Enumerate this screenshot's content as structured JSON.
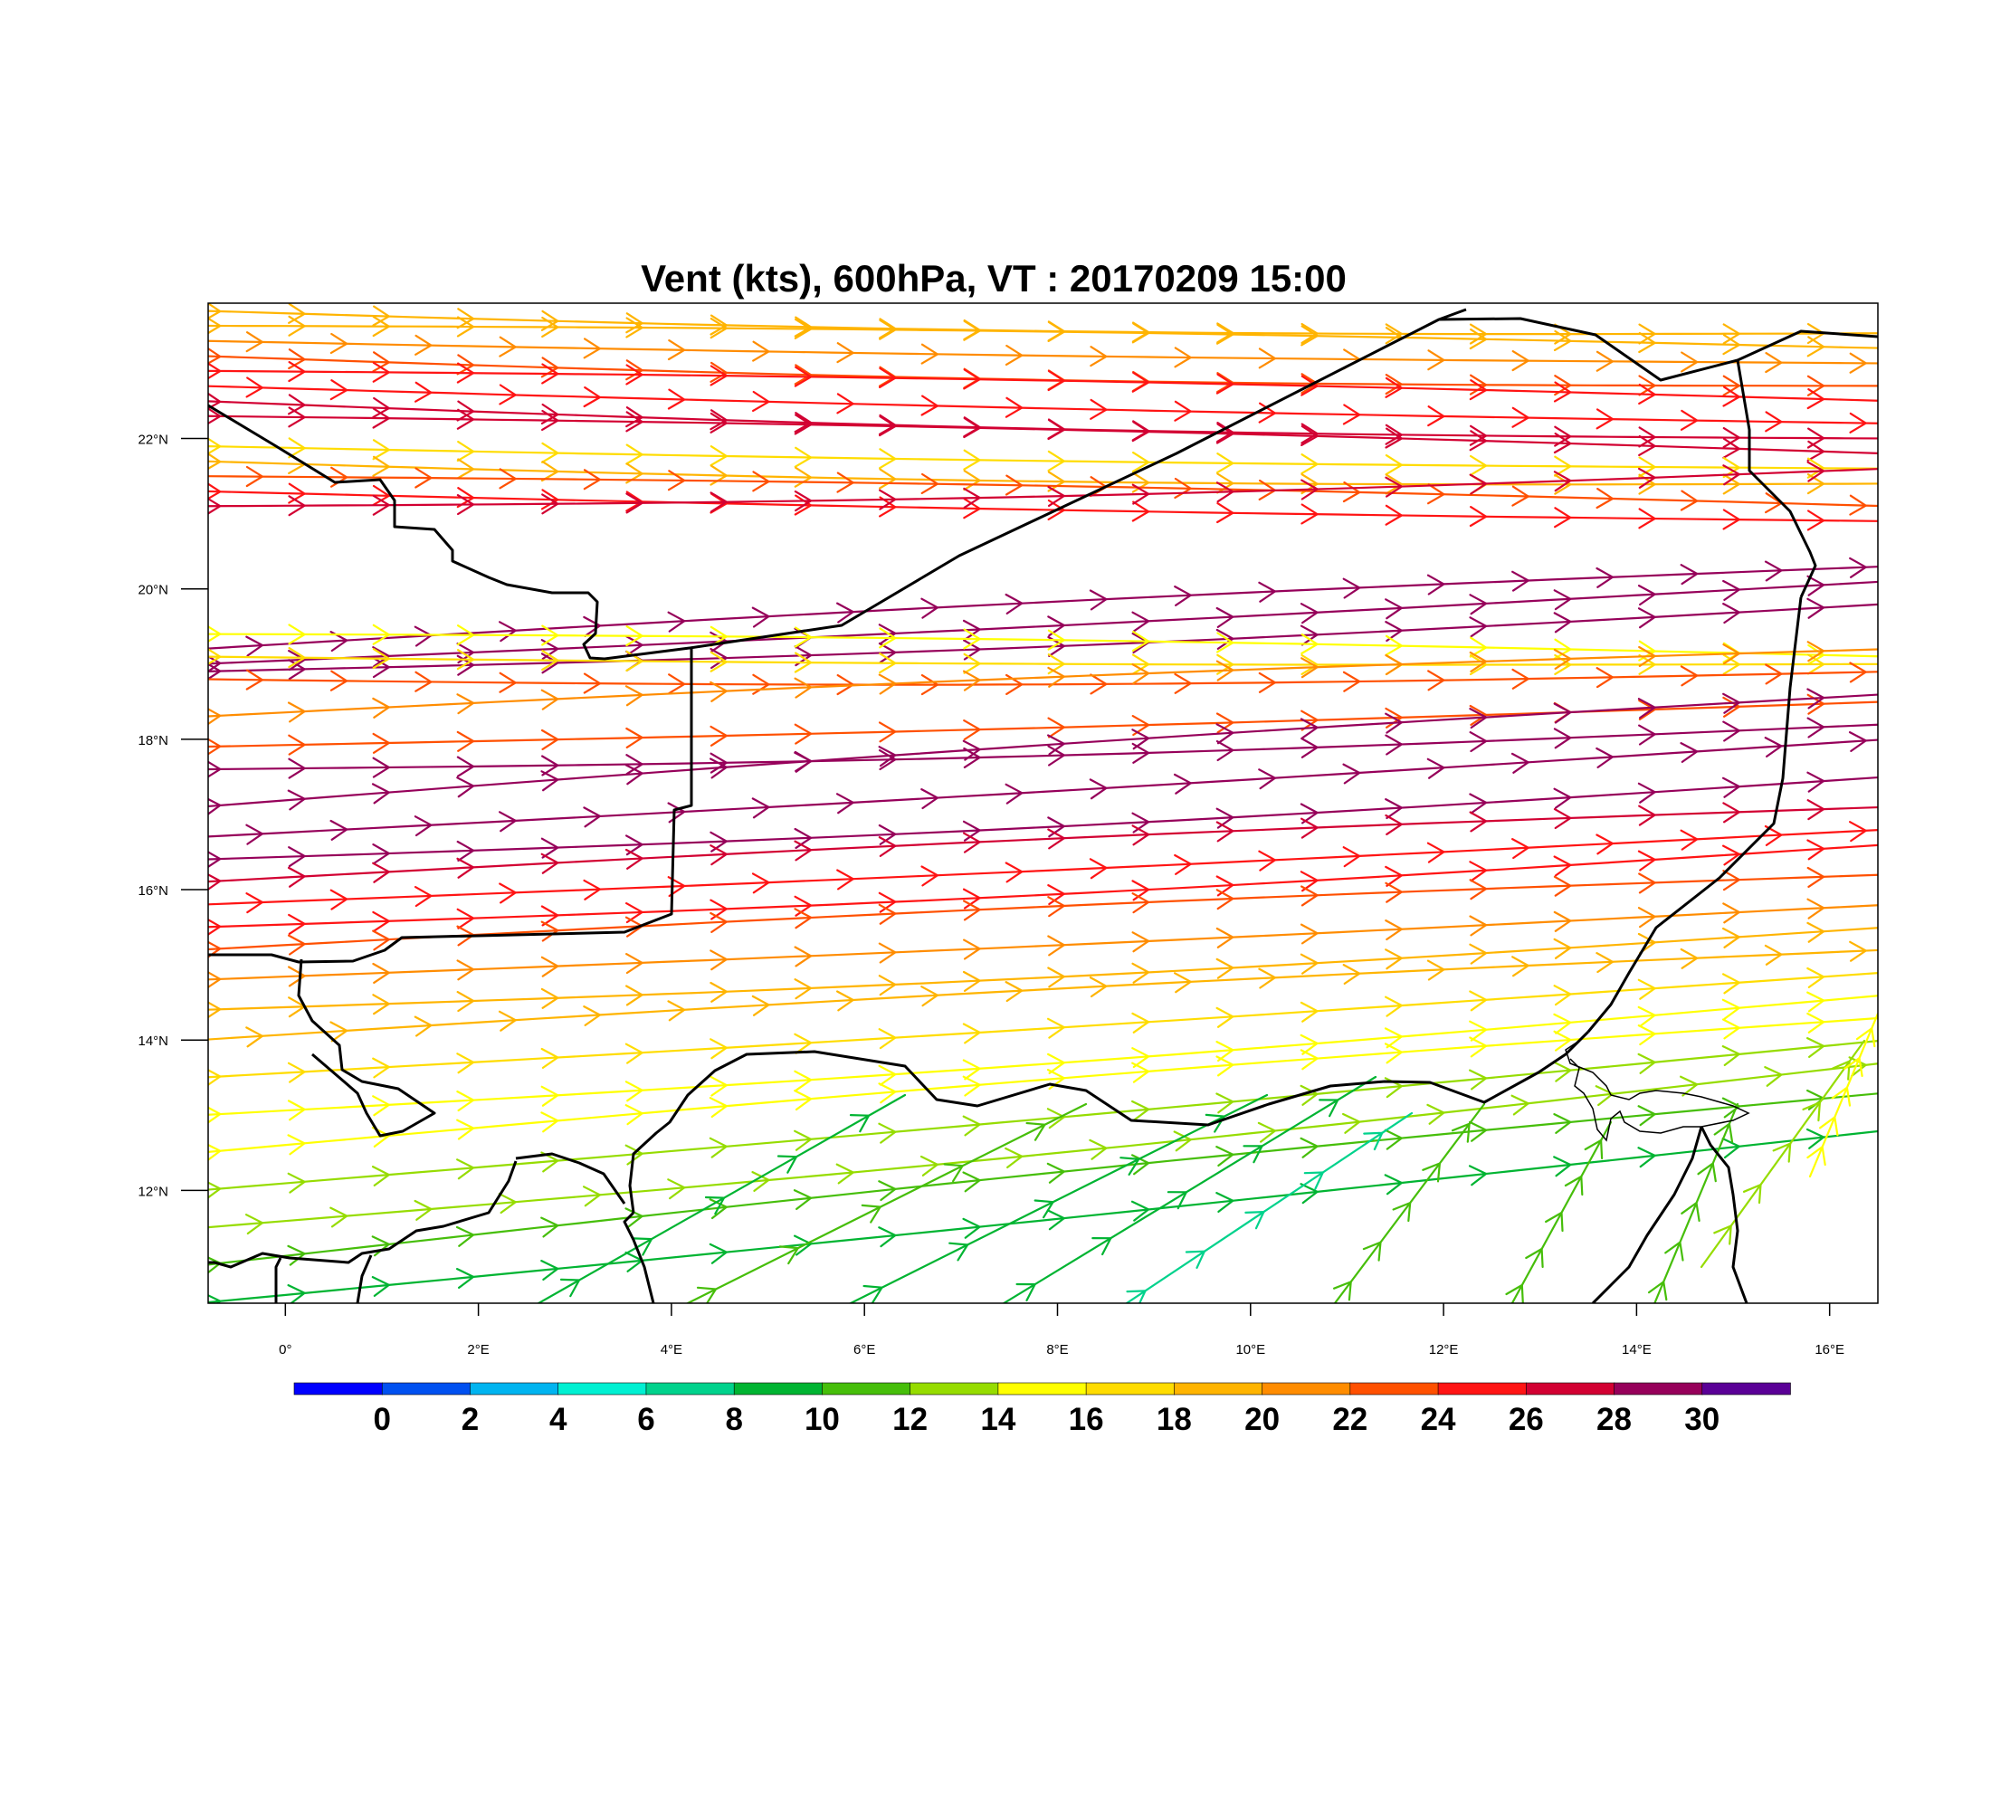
{
  "title": "Vent (kts), 600hPa, VT : 20170209  15:00",
  "map": {
    "lon_range": [
      -0.8,
      16.5
    ],
    "lat_range": [
      10.5,
      23.8
    ],
    "lon_ticks": [
      "0°",
      "2°E",
      "4°E",
      "6°E",
      "8°E",
      "10°E",
      "12°E",
      "14°E",
      "16°E"
    ],
    "lat_ticks": [
      "12°N",
      "14°N",
      "16°N",
      "18°N",
      "20°N",
      "22°N"
    ]
  },
  "colorbar": {
    "colors": [
      "#0000ff",
      "#0050f0",
      "#00b4f0",
      "#00f0d2",
      "#00d28c",
      "#00b432",
      "#46be0a",
      "#96dc00",
      "#ffff00",
      "#ffdc00",
      "#ffb400",
      "#ff8c00",
      "#ff5000",
      "#ff1414",
      "#d20032",
      "#96005a",
      "#5a0096"
    ],
    "labels": [
      "0",
      "2",
      "4",
      "6",
      "8",
      "10",
      "12",
      "14",
      "16",
      "18",
      "20",
      "22",
      "24",
      "26",
      "28",
      "30"
    ]
  },
  "wind_bands": [
    {
      "lat_start": 23.7,
      "lat_end": 23.4,
      "speed": 20
    },
    {
      "lat_start": 23.5,
      "lat_end": 23.2,
      "speed": 21
    },
    {
      "lat_start": 23.3,
      "lat_end": 23.0,
      "speed": 23
    },
    {
      "lat_start": 23.1,
      "lat_end": 22.7,
      "speed": 25
    },
    {
      "lat_start": 22.9,
      "lat_end": 22.5,
      "speed": 26
    },
    {
      "lat_start": 22.7,
      "lat_end": 22.2,
      "speed": 27
    },
    {
      "lat_start": 22.5,
      "lat_end": 22.0,
      "speed": 28
    },
    {
      "lat_start": 22.3,
      "lat_end": 21.8,
      "speed": 29
    },
    {
      "lat_start": 21.9,
      "lat_end": 21.6,
      "speed": 18
    },
    {
      "lat_start": 21.7,
      "lat_end": 21.4,
      "speed": 20
    },
    {
      "lat_start": 21.5,
      "lat_end": 21.1,
      "speed": 24
    },
    {
      "lat_start": 21.3,
      "lat_end": 20.9,
      "speed": 27
    },
    {
      "lat_start": 21.1,
      "lat_end": 21.6,
      "speed": 29
    },
    {
      "lat_start": 19.2,
      "lat_end": 20.3,
      "speed": 31
    },
    {
      "lat_start": 19.0,
      "lat_end": 20.1,
      "speed": 31
    },
    {
      "lat_start": 18.9,
      "lat_end": 19.8,
      "speed": 30
    },
    {
      "lat_start": 19.4,
      "lat_end": 19.1,
      "speed": 17
    },
    {
      "lat_start": 19.1,
      "lat_end": 19.0,
      "speed": 19
    },
    {
      "lat_start": 18.8,
      "lat_end": 18.9,
      "speed": 24
    },
    {
      "lat_start": 18.3,
      "lat_end": 19.2,
      "speed": 22
    },
    {
      "lat_start": 17.9,
      "lat_end": 18.5,
      "speed": 25
    },
    {
      "lat_start": 17.6,
      "lat_end": 18.2,
      "speed": 30
    },
    {
      "lat_start": 17.1,
      "lat_end": 18.6,
      "speed": 31
    },
    {
      "lat_start": 16.7,
      "lat_end": 18.0,
      "speed": 31
    },
    {
      "lat_start": 16.4,
      "lat_end": 17.5,
      "speed": 30
    },
    {
      "lat_start": 16.1,
      "lat_end": 17.1,
      "speed": 29
    },
    {
      "lat_start": 15.8,
      "lat_end": 16.8,
      "speed": 27
    },
    {
      "lat_start": 15.5,
      "lat_end": 16.6,
      "speed": 26
    },
    {
      "lat_start": 15.2,
      "lat_end": 16.2,
      "speed": 24
    },
    {
      "lat_start": 14.8,
      "lat_end": 15.8,
      "speed": 22
    },
    {
      "lat_start": 14.4,
      "lat_end": 15.5,
      "speed": 21
    },
    {
      "lat_start": 14.0,
      "lat_end": 15.2,
      "speed": 20
    },
    {
      "lat_start": 13.5,
      "lat_end": 14.9,
      "speed": 19
    },
    {
      "lat_start": 13.0,
      "lat_end": 14.6,
      "speed": 17
    },
    {
      "lat_start": 12.5,
      "lat_end": 14.3,
      "speed": 16
    },
    {
      "lat_start": 12.0,
      "lat_end": 14.0,
      "speed": 15
    },
    {
      "lat_start": 11.5,
      "lat_end": 13.7,
      "speed": 14
    },
    {
      "lat_start": 11.0,
      "lat_end": 13.3,
      "speed": 12
    },
    {
      "lat_start": 10.5,
      "lat_end": 12.8,
      "speed": 11
    }
  ]
}
